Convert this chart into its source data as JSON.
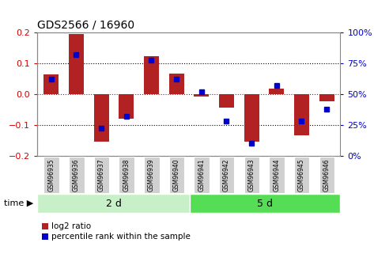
{
  "title": "GDS2566 / 16960",
  "samples": [
    "GSM96935",
    "GSM96936",
    "GSM96937",
    "GSM96938",
    "GSM96939",
    "GSM96940",
    "GSM96941",
    "GSM96942",
    "GSM96943",
    "GSM96944",
    "GSM96945",
    "GSM96946"
  ],
  "log2_ratio": [
    0.065,
    0.195,
    -0.155,
    -0.08,
    0.125,
    0.068,
    -0.008,
    -0.045,
    -0.155,
    0.018,
    -0.135,
    -0.022
  ],
  "percentile_rank": [
    62,
    82,
    22,
    32,
    78,
    62,
    52,
    28,
    10,
    57,
    28,
    38
  ],
  "group1_label": "2 d",
  "group2_label": "5 d",
  "group1_count": 6,
  "group2_count": 6,
  "ylim": [
    -0.2,
    0.2
  ],
  "y2lim": [
    0,
    100
  ],
  "yticks": [
    -0.2,
    -0.1,
    0.0,
    0.1,
    0.2
  ],
  "y2ticks": [
    0,
    25,
    50,
    75,
    100
  ],
  "bar_color": "#b22222",
  "dot_color": "#0000cd",
  "group1_bg": "#c8f0c8",
  "group2_bg": "#55dd55",
  "sample_bg": "#d0d0d0",
  "legend_bar_label": "log2 ratio",
  "legend_dot_label": "percentile rank within the sample",
  "time_label": "time",
  "dotted_line_color": "#000000",
  "zero_line_color": "#cc0000"
}
